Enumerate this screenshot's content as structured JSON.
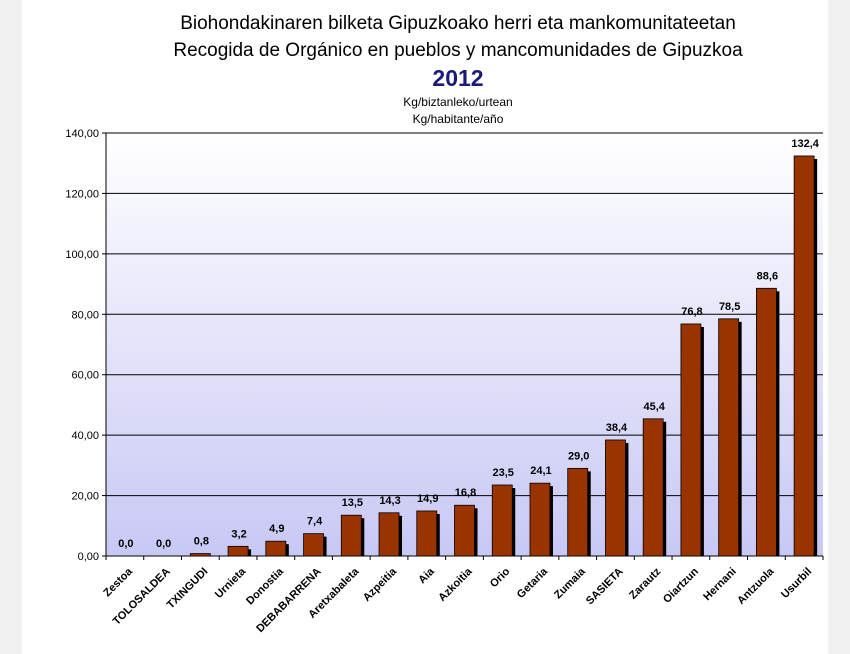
{
  "chart_data": {
    "type": "bar",
    "title_lines": [
      "Biohondakinaren bilketa Gipuzkoako herri eta mankomunitateetan",
      "Recogida de Orgánico en pueblos y mancomunidades de Gipuzkoa"
    ],
    "year": "2012",
    "unit_lines": [
      "Kg/biztanleko/urtean",
      "Kg/habitante/año"
    ],
    "categories": [
      "Zestoa",
      "TOLOSALDEA",
      "TXINGUDI",
      "Urnieta",
      "Donostia",
      "DEBABARRENA",
      "Aretxabaleta",
      "Azpeitia",
      "Aia",
      "Azkoitia",
      "Orio",
      "Getaria",
      "Zumaia",
      "SASIETA",
      "Zarautz",
      "Oiartzun",
      "Hernani",
      "Antzuola",
      "Usurbil"
    ],
    "values": [
      0.0,
      0.0,
      0.8,
      3.2,
      4.9,
      7.4,
      13.5,
      14.3,
      14.9,
      16.8,
      23.5,
      24.1,
      29.0,
      38.4,
      45.4,
      76.8,
      78.5,
      88.6,
      132.4
    ],
    "value_labels": [
      "0,0",
      "0,0",
      "0,8",
      "3,2",
      "4,9",
      "7,4",
      "13,5",
      "14,3",
      "14,9",
      "16,8",
      "23,5",
      "24,1",
      "29,0",
      "38,4",
      "45,4",
      "76,8",
      "78,5",
      "88,6",
      "132,4"
    ],
    "ylim": [
      0,
      140
    ],
    "yticks": [
      0,
      20,
      40,
      60,
      80,
      100,
      120,
      140
    ],
    "ytick_labels": [
      "0,00",
      "20,00",
      "40,00",
      "60,00",
      "80,00",
      "100,00",
      "120,00",
      "140,00"
    ],
    "grid": true,
    "colors": {
      "bar": "#993300",
      "bar_shadow": "#000000",
      "plot_bg_top": "#ffffff",
      "plot_bg_bottom": "#c8c8f5",
      "year": "#1a1a7a"
    }
  }
}
